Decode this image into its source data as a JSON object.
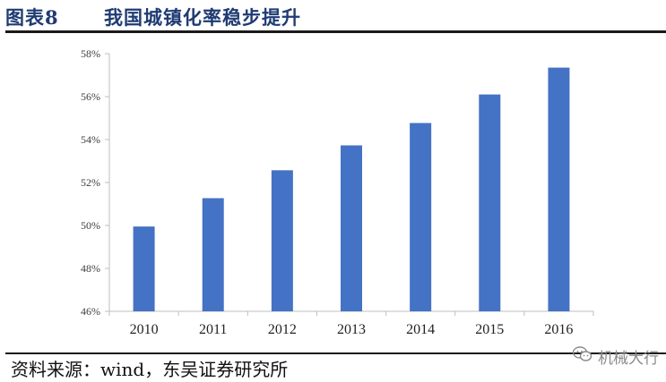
{
  "header": {
    "figure_label": "图表8",
    "title": "我国城镇化率稳步提升"
  },
  "footer": {
    "source": "资料来源：wind，东吴证券研究所",
    "watermark": "机械大行"
  },
  "colors": {
    "bar": "#4472c4",
    "title": "#1f3b73",
    "axis": "#bfbfbf",
    "text": "#404040"
  },
  "icons": {
    "watermark": "wechat-icon"
  },
  "chart_data": {
    "type": "bar",
    "title": "我国城镇化率稳步提升",
    "categories": [
      "2010",
      "2011",
      "2012",
      "2013",
      "2014",
      "2015",
      "2016"
    ],
    "values": [
      49.95,
      51.27,
      52.57,
      53.73,
      54.77,
      56.1,
      57.35
    ],
    "y_unit": "%",
    "ylim": [
      46,
      58
    ],
    "yticks": [
      "46%",
      "48%",
      "50%",
      "52%",
      "54%",
      "56%",
      "58%"
    ],
    "xlabel": "",
    "ylabel": "",
    "grid": false,
    "legend": "none"
  }
}
